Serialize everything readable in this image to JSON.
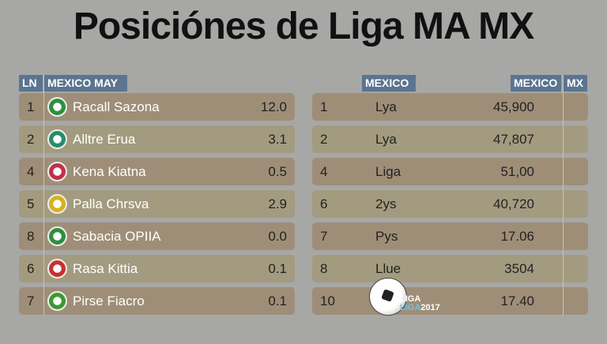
{
  "title": "Posiciónes de Liga MA MX",
  "left": {
    "headers": [
      "LN",
      "MEXICO MAY"
    ],
    "rows": [
      {
        "pos": "1",
        "team": "Racall Sazona",
        "value": "12.0",
        "color": "#2f8f3f"
      },
      {
        "pos": "2",
        "team": "Alltre Erua",
        "value": "3.1",
        "color": "#2a8c6a"
      },
      {
        "pos": "4",
        "team": "Kena Kiatna",
        "value": "0.5",
        "color": "#c0304a"
      },
      {
        "pos": "5",
        "team": "Palla Chrsva",
        "value": "2.9",
        "color": "#d8b020"
      },
      {
        "pos": "8",
        "team": "Sabacia OPIIA",
        "value": "0.0",
        "color": "#2f8f3f"
      },
      {
        "pos": "6",
        "team": "Rasa Kittia",
        "value": "0.1",
        "color": "#c83030"
      },
      {
        "pos": "7",
        "team": "Pirse Fiacro",
        "value": "0.1",
        "color": "#3a9a30"
      }
    ]
  },
  "right": {
    "headers": [
      "MEXICO",
      "MEXICO",
      "MX"
    ],
    "rows": [
      {
        "pos": "1",
        "team": "Lya",
        "value": "45,900"
      },
      {
        "pos": "2",
        "team": "Lya",
        "value": "47,807"
      },
      {
        "pos": "4",
        "team": "Liga",
        "value": "51,00"
      },
      {
        "pos": "6",
        "team": "2ys",
        "value": "40,720"
      },
      {
        "pos": "7",
        "team": "Pys",
        "value": "17.06"
      },
      {
        "pos": "8",
        "team": "Llue",
        "value": "3504"
      },
      {
        "pos": "10",
        "team": "",
        "value": "17.40"
      }
    ]
  },
  "badge": {
    "line1": "LIGA",
    "line2a": "LIGA",
    "line2b": "2017"
  }
}
